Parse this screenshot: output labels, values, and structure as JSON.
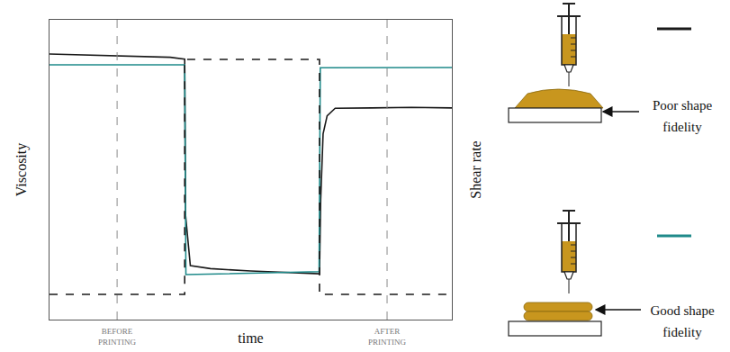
{
  "chart_data": {
    "type": "line",
    "x_label": "time",
    "y_label": "Viscosity",
    "y2_label": "Shear rate",
    "xlim": [
      0,
      100
    ],
    "ylim": [
      0,
      100
    ],
    "y2lim": [
      0,
      100
    ],
    "xticks": [],
    "yticks": [],
    "y2ticks": [],
    "tick_labels": false,
    "grid": false,
    "markers": [
      {
        "x": 16.8,
        "label": "BEFORE PRINTING"
      },
      {
        "x": 83.9,
        "label": "AFTER PRINTING"
      }
    ],
    "series": [
      {
        "name": "Poor shape fidelity",
        "color": "#1a1a1a",
        "line_style": "solid",
        "x": [
          0,
          10,
          20,
          30,
          33.6,
          33.8,
          35,
          40,
          50,
          60,
          67.1,
          67.4,
          68,
          69,
          71,
          80,
          90,
          100
        ],
        "values": [
          88.6,
          88.3,
          88.0,
          87.5,
          86.9,
          35,
          18,
          17,
          16.2,
          15.8,
          15.3,
          40,
          62,
          68,
          70.5,
          70.6,
          70.8,
          70.6
        ]
      },
      {
        "name": "Good shape fidelity",
        "color": "#1f8a8a",
        "line_style": "solid",
        "x": [
          0,
          20,
          33.6,
          33.9,
          50,
          67.0,
          67.3,
          80,
          100
        ],
        "values": [
          85.0,
          85.0,
          85.0,
          15.0,
          15.4,
          16.0,
          84.0,
          84.1,
          84.1
        ]
      },
      {
        "color": "#1a1a1a",
        "line_style": "dashed",
        "axis": "y2",
        "x": [
          0,
          33.6,
          33.6,
          67.1,
          67.1,
          100
        ],
        "values": [
          8.4,
          8.4,
          86.8,
          86.8,
          8.4,
          8.4
        ]
      }
    ]
  }
}
